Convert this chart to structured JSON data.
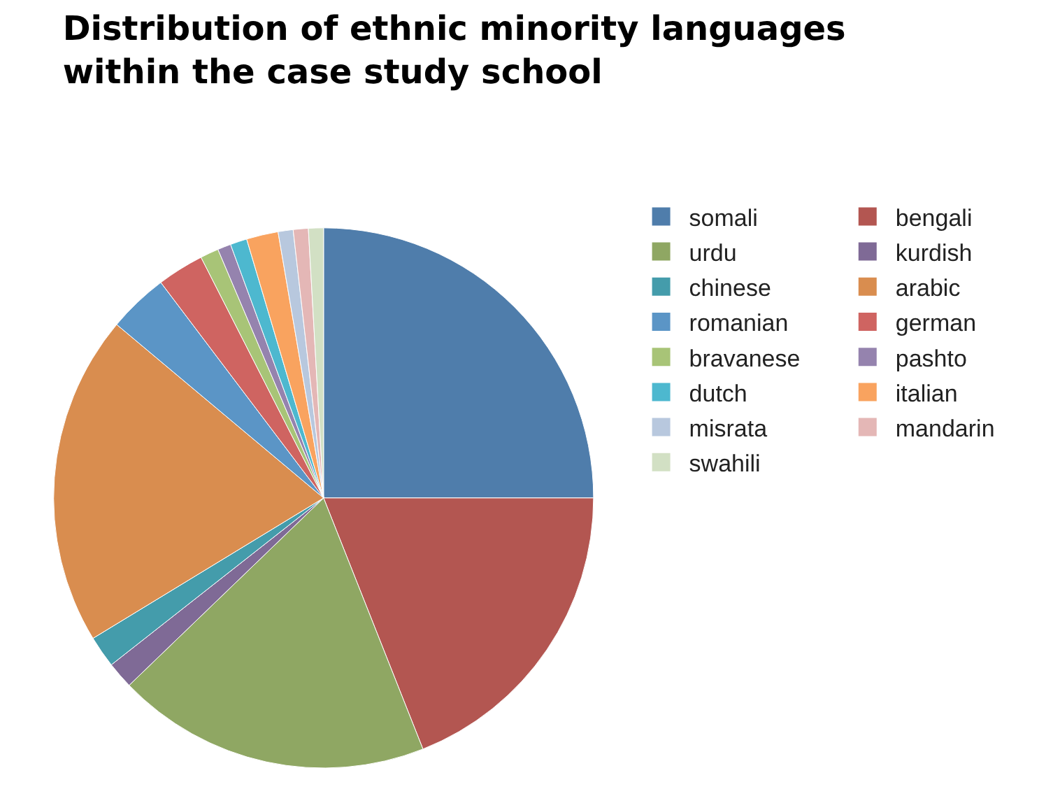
{
  "chart_data": {
    "type": "pie",
    "title": "Distribution of ethnic minority languages within the case study school",
    "categories": [
      "somali",
      "bengali",
      "urdu",
      "kurdish",
      "chinese",
      "arabic",
      "romanian",
      "german",
      "bravanese",
      "pashto",
      "dutch",
      "italian",
      "misrata",
      "mandarin",
      "swahili"
    ],
    "values": [
      25,
      19,
      18.8,
      1.6,
      1.9,
      19.8,
      3.6,
      2.8,
      1.1,
      0.8,
      1,
      1.9,
      0.9,
      0.9,
      0.9
    ],
    "colors": [
      "#4f7dab",
      "#b35651",
      "#8fa763",
      "#7f6a96",
      "#449cab",
      "#d98d4f",
      "#5b95c6",
      "#cf6461",
      "#a8c477",
      "#9583ae",
      "#4db8cf",
      "#f9a35f",
      "#b8c8de",
      "#e4b7b6",
      "#d2e0c4"
    ],
    "legend": "right"
  }
}
